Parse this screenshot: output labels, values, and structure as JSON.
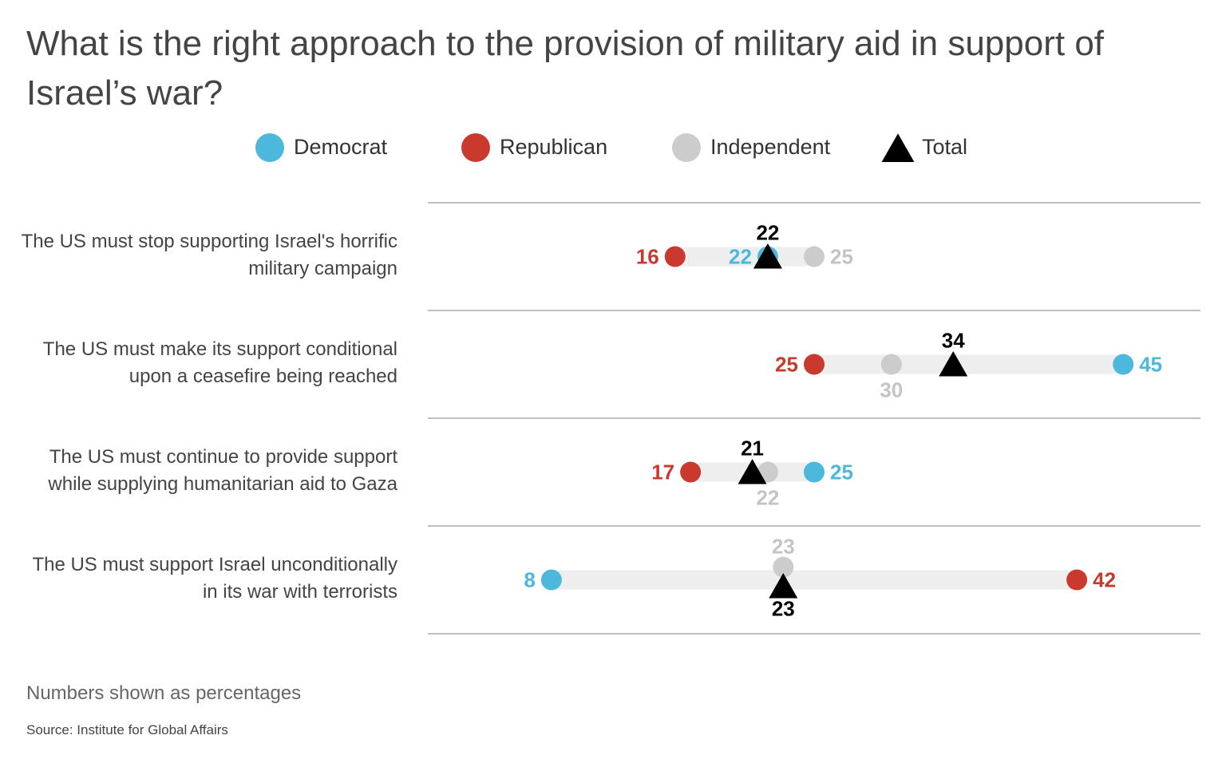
{
  "chart_data": {
    "type": "dot",
    "title": "What is the right approach to the provision of military aid in support of Israel’s war?",
    "categories": [
      "The US must stop supporting Israel's horrific military campaign",
      "The US must make its support conditional upon a ceasefire being reached",
      "The US must continue to provide support while supplying humanitarian aid to Gaza",
      "The US must support Israel unconditionally in its war with terrorists"
    ],
    "series": [
      {
        "name": "Democrat",
        "color": "#4cb8dc",
        "values": [
          22,
          45,
          25,
          8
        ]
      },
      {
        "name": "Republican",
        "color": "#c9392d",
        "values": [
          16,
          25,
          17,
          42
        ]
      },
      {
        "name": "Independent",
        "color": "#cccccc",
        "values": [
          25,
          30,
          22,
          23
        ]
      },
      {
        "name": "Total",
        "color": "#000000",
        "values": [
          22,
          34,
          21,
          23
        ]
      }
    ],
    "xlim": [
      0,
      50
    ],
    "note": "Numbers shown as percentages",
    "source": "Source: Institute for Global Affairs"
  }
}
